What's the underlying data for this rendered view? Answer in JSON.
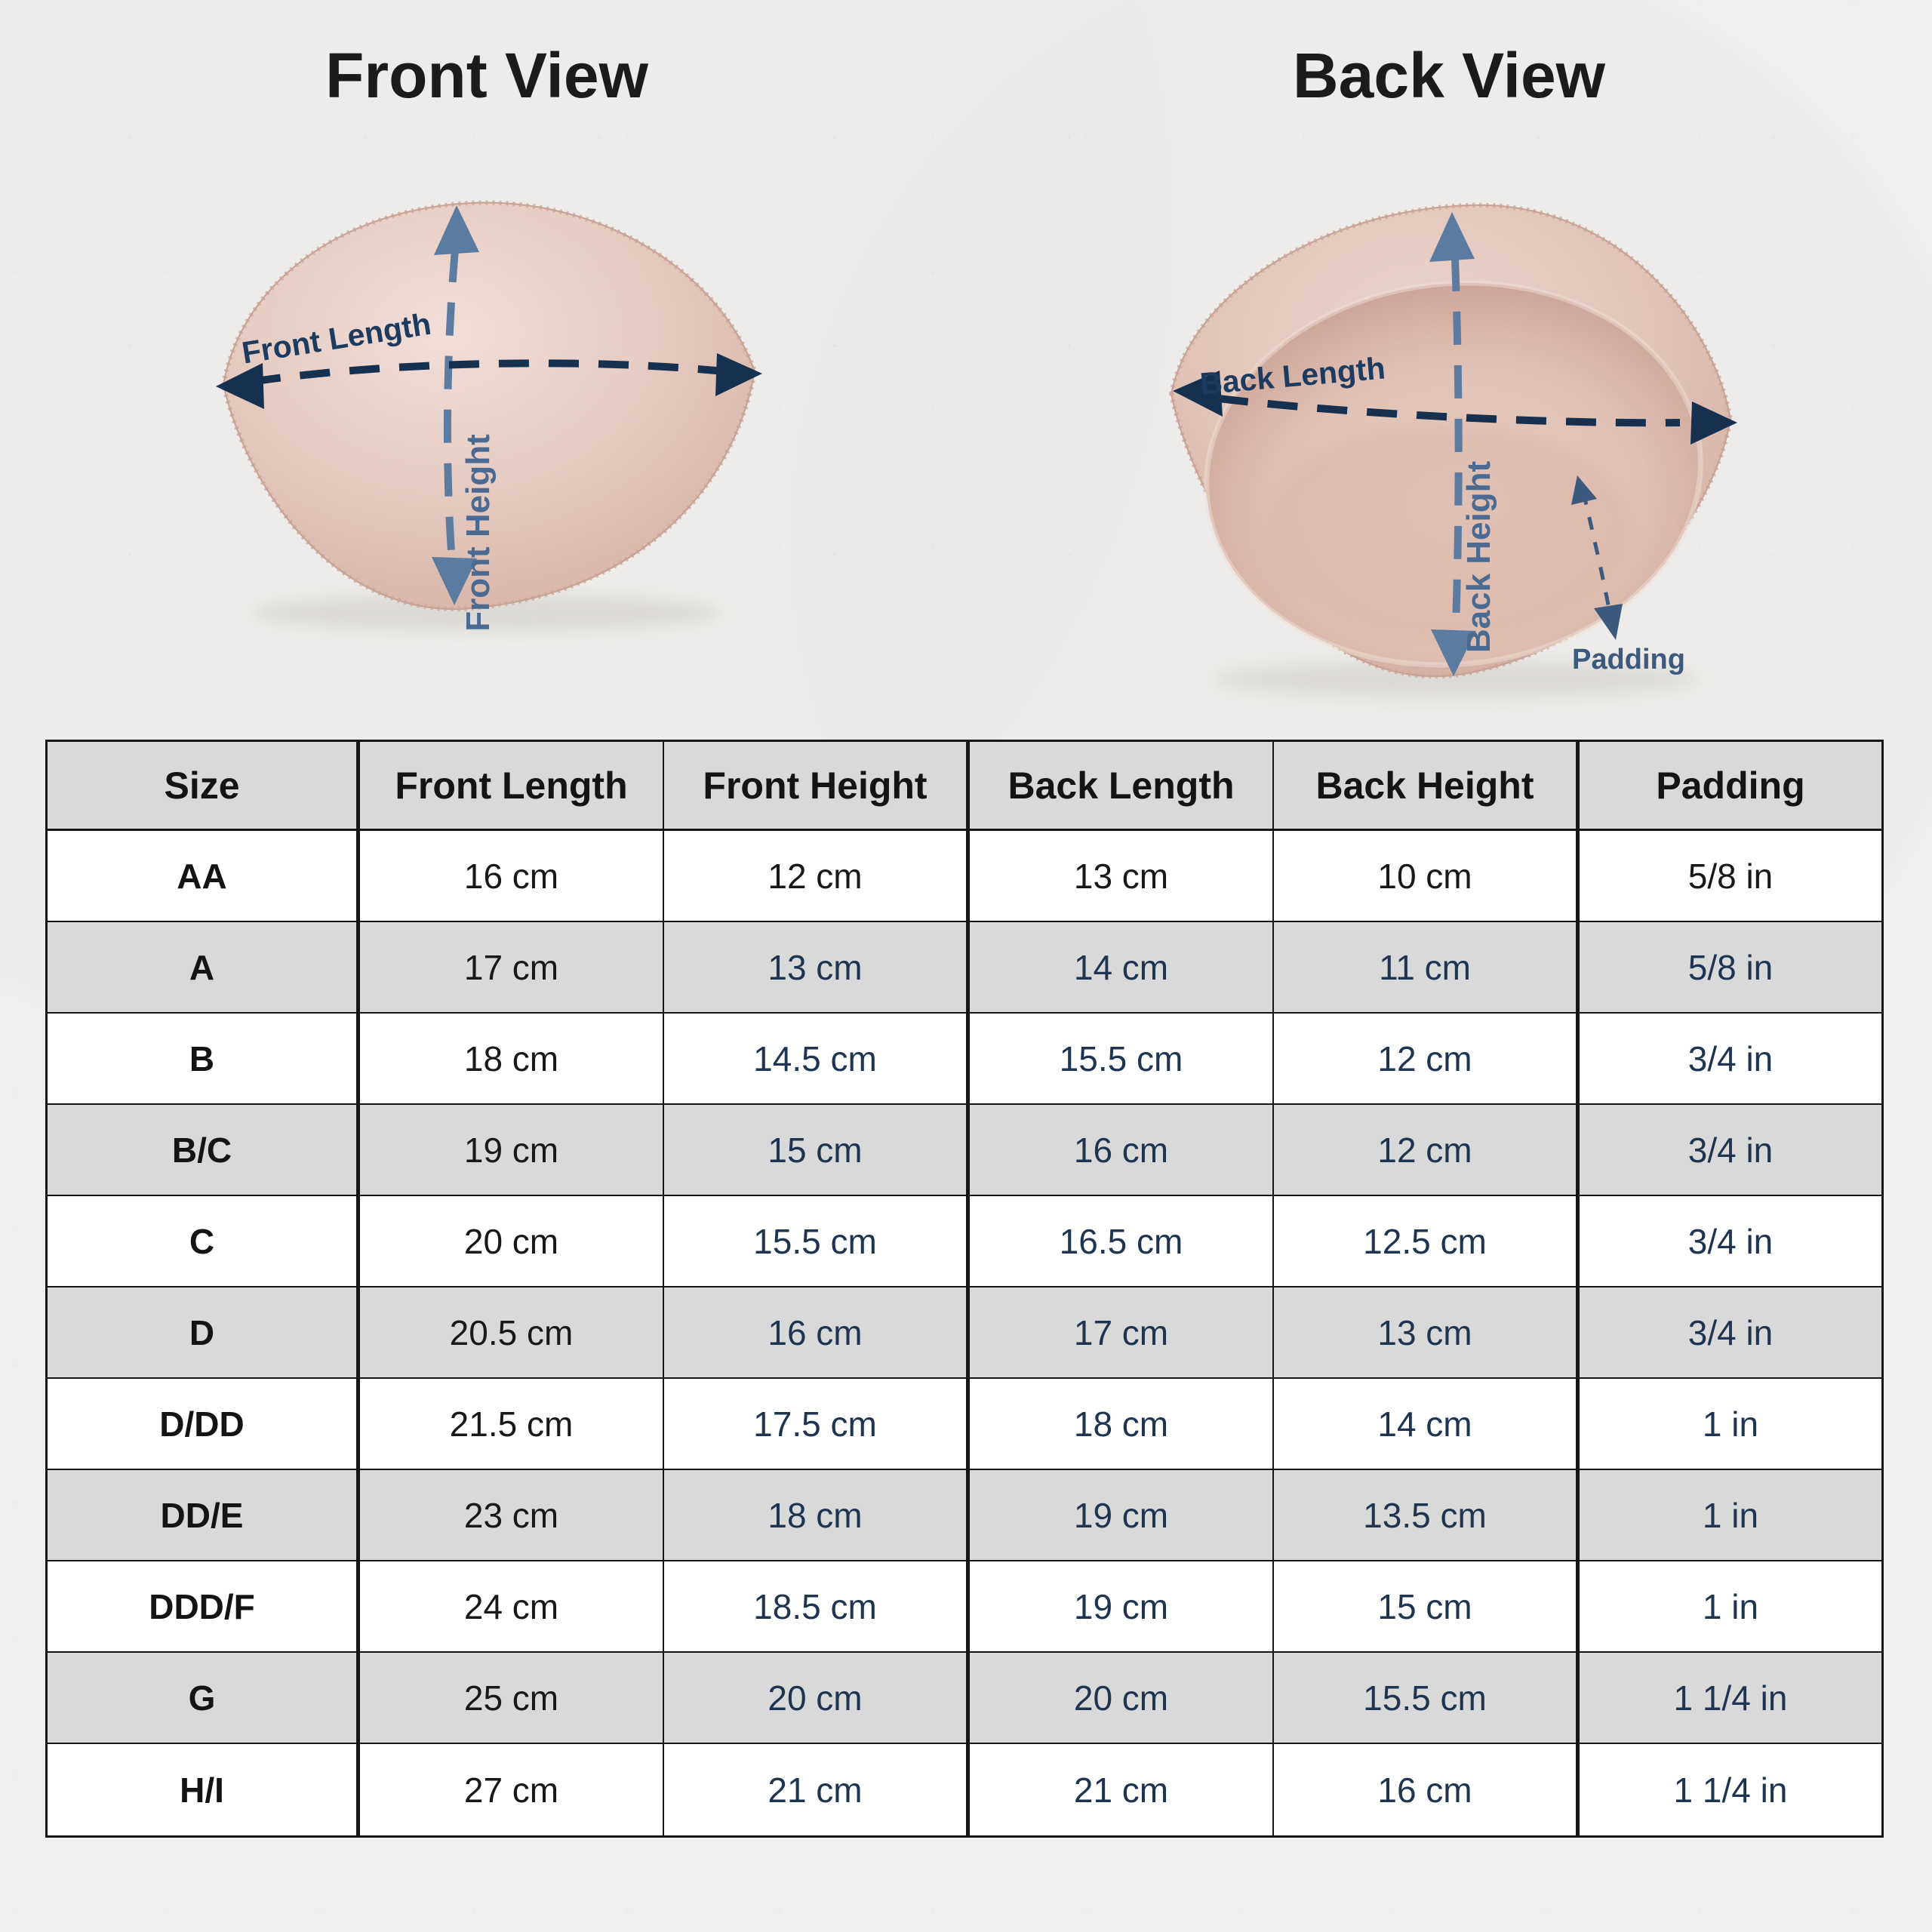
{
  "front_view": {
    "title": "Front View",
    "length_label": "Front Length",
    "height_label": "Front Height"
  },
  "back_view": {
    "title": "Back View",
    "length_label": "Back Length",
    "height_label": "Back Height",
    "padding_label": "Padding"
  },
  "colors": {
    "background": "#f0efed",
    "title_text": "#1b1b1b",
    "arrow_navy": "#16304f",
    "arrow_slate": "#5b7ba1",
    "label_navy": "#1d3a5f",
    "label_slate": "#4a6a92",
    "padding_label": "#3c5a7e",
    "header_bg": "#d9d9d9",
    "row_alt_bg": "#d9d9d9",
    "row_bg": "#ffffff",
    "grid_line": "#161616",
    "cell_text_black": "#191919",
    "cell_text_navy": "#1e3450",
    "pad_light": "#f0ddd7",
    "pad_mid": "#e0c2b8",
    "pad_dark": "#d2ab9e"
  },
  "table": {
    "headers": [
      "Size",
      "Front Length",
      "Front Height",
      "Back Length",
      "Back Height",
      "Padding"
    ],
    "rows": [
      {
        "size": "AA",
        "values": [
          "16 cm",
          "12 cm",
          "13 cm",
          "10 cm",
          "5/8 in"
        ]
      },
      {
        "size": "A",
        "values": [
          "17 cm",
          "13 cm",
          "14 cm",
          "11 cm",
          "5/8 in"
        ]
      },
      {
        "size": "B",
        "values": [
          "18 cm",
          "14.5 cm",
          "15.5 cm",
          "12 cm",
          "3/4 in"
        ]
      },
      {
        "size": "B/C",
        "values": [
          "19 cm",
          "15 cm",
          "16 cm",
          "12 cm",
          "3/4 in"
        ]
      },
      {
        "size": "C",
        "values": [
          "20 cm",
          "15.5 cm",
          "16.5 cm",
          "12.5 cm",
          "3/4 in"
        ]
      },
      {
        "size": "D",
        "values": [
          "20.5 cm",
          "16 cm",
          "17 cm",
          "13 cm",
          "3/4 in"
        ]
      },
      {
        "size": "D/DD",
        "values": [
          "21.5 cm",
          "17.5 cm",
          "18 cm",
          "14 cm",
          "1 in"
        ]
      },
      {
        "size": "DD/E",
        "values": [
          "23 cm",
          "18 cm",
          "19 cm",
          "13.5 cm",
          "1 in"
        ]
      },
      {
        "size": "DDD/F",
        "values": [
          "24 cm",
          "18.5 cm",
          "19 cm",
          "15 cm",
          "1 in"
        ]
      },
      {
        "size": "G",
        "values": [
          "25 cm",
          "20 cm",
          "20 cm",
          "15.5 cm",
          "1 1/4 in"
        ]
      },
      {
        "size": "H/I",
        "values": [
          "27 cm",
          "21 cm",
          "21 cm",
          "16 cm",
          "1 1/4 in"
        ]
      }
    ]
  }
}
